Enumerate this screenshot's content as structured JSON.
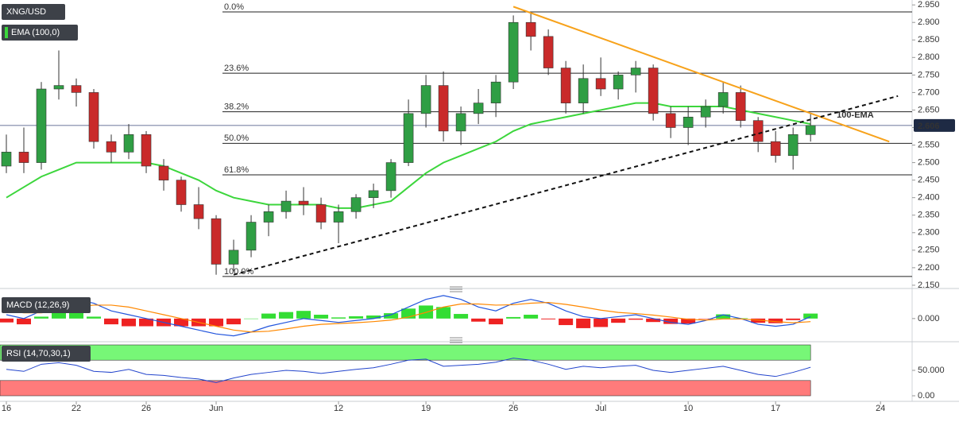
{
  "chart_data": [
    {
      "type": "candlestick",
      "title": "XNG/USD",
      "x": [
        0,
        1,
        2,
        3,
        4,
        5,
        6,
        7,
        8,
        9,
        10,
        11,
        12,
        13,
        14,
        15,
        16,
        17,
        18,
        19,
        20,
        21,
        22,
        23,
        24,
        25,
        26,
        27,
        28,
        29,
        30,
        31,
        32,
        33,
        34,
        35,
        36,
        37,
        38,
        39,
        40,
        41,
        42,
        43,
        44,
        45,
        46
      ],
      "open": [
        2.49,
        2.53,
        2.5,
        2.71,
        2.72,
        2.7,
        2.56,
        2.53,
        2.58,
        2.49,
        2.45,
        2.38,
        2.34,
        2.21,
        2.25,
        2.33,
        2.36,
        2.39,
        2.38,
        2.33,
        2.36,
        2.4,
        2.42,
        2.5,
        2.64,
        2.72,
        2.59,
        2.64,
        2.67,
        2.73,
        2.9,
        2.86,
        2.77,
        2.67,
        2.74,
        2.71,
        2.75,
        2.77,
        2.64,
        2.6,
        2.63,
        2.66,
        2.7,
        2.62,
        2.56,
        2.52,
        2.58
      ],
      "high": [
        2.58,
        2.6,
        2.73,
        2.82,
        2.74,
        2.71,
        2.58,
        2.61,
        2.59,
        2.51,
        2.46,
        2.43,
        2.35,
        2.28,
        2.35,
        2.38,
        2.42,
        2.43,
        2.4,
        2.38,
        2.41,
        2.44,
        2.51,
        2.68,
        2.75,
        2.76,
        2.66,
        2.71,
        2.75,
        2.92,
        2.93,
        2.88,
        2.79,
        2.78,
        2.8,
        2.76,
        2.79,
        2.78,
        2.66,
        2.66,
        2.68,
        2.73,
        2.72,
        2.63,
        2.59,
        2.6,
        2.64
      ],
      "low": [
        2.47,
        2.47,
        2.48,
        2.68,
        2.66,
        2.54,
        2.5,
        2.51,
        2.47,
        2.42,
        2.36,
        2.31,
        2.18,
        2.19,
        2.23,
        2.29,
        2.34,
        2.35,
        2.31,
        2.27,
        2.34,
        2.37,
        2.4,
        2.49,
        2.6,
        2.56,
        2.55,
        2.61,
        2.63,
        2.71,
        2.82,
        2.75,
        2.64,
        2.64,
        2.69,
        2.68,
        2.7,
        2.62,
        2.57,
        2.55,
        2.6,
        2.64,
        2.6,
        2.53,
        2.5,
        2.48,
        2.56
      ],
      "close": [
        2.53,
        2.5,
        2.71,
        2.72,
        2.7,
        2.56,
        2.53,
        2.58,
        2.49,
        2.45,
        2.38,
        2.34,
        2.21,
        2.25,
        2.33,
        2.36,
        2.39,
        2.38,
        2.33,
        2.36,
        2.4,
        2.42,
        2.5,
        2.64,
        2.72,
        2.59,
        2.64,
        2.67,
        2.73,
        2.9,
        2.86,
        2.77,
        2.67,
        2.74,
        2.71,
        2.75,
        2.77,
        2.64,
        2.6,
        2.63,
        2.66,
        2.7,
        2.62,
        2.56,
        2.52,
        2.58,
        2.606
      ],
      "up_color": "#2f9e44",
      "down_color": "#c92a2a",
      "series": [
        {
          "name": "EMA (100,0)",
          "color": "#3cd63c",
          "values": [
            2.4,
            2.43,
            2.46,
            2.48,
            2.5,
            2.5,
            2.5,
            2.5,
            2.5,
            2.49,
            2.47,
            2.45,
            2.42,
            2.4,
            2.39,
            2.38,
            2.38,
            2.38,
            2.38,
            2.37,
            2.37,
            2.38,
            2.39,
            2.43,
            2.47,
            2.5,
            2.52,
            2.54,
            2.56,
            2.59,
            2.61,
            2.62,
            2.63,
            2.64,
            2.65,
            2.66,
            2.67,
            2.67,
            2.66,
            2.66,
            2.66,
            2.66,
            2.65,
            2.64,
            2.63,
            2.62,
            2.61
          ]
        }
      ],
      "xlim": [
        -0.3636,
        51.9
      ],
      "xticks": [
        {
          "value": 0,
          "label": "16"
        },
        {
          "value": 4,
          "label": "22"
        },
        {
          "value": 8,
          "label": "26"
        },
        {
          "value": 12,
          "label": "Jun"
        },
        {
          "value": 19,
          "label": "12"
        },
        {
          "value": 24,
          "label": "19"
        },
        {
          "value": 29,
          "label": "26"
        },
        {
          "value": 34,
          "label": "Jul"
        },
        {
          "value": 39,
          "label": "10"
        },
        {
          "value": 44,
          "label": "17"
        },
        {
          "value": 50,
          "label": "24"
        }
      ],
      "ylim": [
        2.143,
        2.964
      ],
      "yticks": [
        {
          "value": 2.15,
          "label": "2.150"
        },
        {
          "value": 2.2,
          "label": "2.200"
        },
        {
          "value": 2.25,
          "label": "2.250"
        },
        {
          "value": 2.3,
          "label": "2.300"
        },
        {
          "value": 2.35,
          "label": "2.350"
        },
        {
          "value": 2.4,
          "label": "2.400"
        },
        {
          "value": 2.45,
          "label": "2.450"
        },
        {
          "value": 2.5,
          "label": "2.500"
        },
        {
          "value": 2.55,
          "label": "2.550"
        },
        {
          "value": 2.6,
          "label": "2.600"
        },
        {
          "value": 2.65,
          "label": "2.650"
        },
        {
          "value": 2.7,
          "label": "2.700"
        },
        {
          "value": 2.75,
          "label": "2.750"
        },
        {
          "value": 2.8,
          "label": "2.800"
        },
        {
          "value": 2.85,
          "label": "2.850"
        },
        {
          "value": 2.9,
          "label": "2.900"
        },
        {
          "value": 2.95,
          "label": "2.950"
        }
      ],
      "fib_levels": [
        {
          "label": "0.0%",
          "value": 2.93
        },
        {
          "label": "23.6%",
          "value": 2.755
        },
        {
          "label": "38.2%",
          "value": 2.645
        },
        {
          "label": "50.0%",
          "value": 2.555
        },
        {
          "label": "61.8%",
          "value": 2.465
        },
        {
          "label": "100.0%",
          "value": 2.175
        }
      ],
      "trendlines": [
        {
          "x": [
            29,
            50.5
          ],
          "y": [
            2.945,
            2.56
          ],
          "color": "#f7a21b",
          "dashed": false
        },
        {
          "x": [
            13,
            51
          ],
          "y": [
            2.18,
            2.69
          ],
          "color": "#111111",
          "dashed": true
        }
      ],
      "annotation": {
        "text": "100-EMA",
        "x": 47.5,
        "y": 2.635,
        "color": "#3cd63c"
      },
      "last_price": 2.606
    },
    {
      "type": "macd",
      "title": "MACD (12,26,9)",
      "series": [
        {
          "color": "#2255dd",
          "values": [
            0.01,
            0.0,
            0.02,
            0.04,
            0.05,
            0.04,
            0.02,
            0.01,
            0.0,
            -0.01,
            -0.02,
            -0.03,
            -0.04,
            -0.045,
            -0.035,
            -0.02,
            -0.01,
            0.0,
            -0.005,
            -0.01,
            -0.005,
            0.0,
            0.01,
            0.03,
            0.05,
            0.06,
            0.05,
            0.03,
            0.02,
            0.04,
            0.05,
            0.04,
            0.02,
            0.005,
            0.0,
            0.005,
            0.01,
            0.0,
            -0.01,
            -0.015,
            -0.005,
            0.01,
            0.0,
            -0.015,
            -0.02,
            -0.015,
            0.005
          ]
        },
        {
          "color": "#ff8800",
          "values": [
            0.02,
            0.015,
            0.015,
            0.02,
            0.03,
            0.035,
            0.035,
            0.03,
            0.02,
            0.01,
            0.0,
            -0.01,
            -0.02,
            -0.03,
            -0.035,
            -0.033,
            -0.027,
            -0.02,
            -0.015,
            -0.013,
            -0.011,
            -0.008,
            -0.004,
            0.004,
            0.016,
            0.03,
            0.038,
            0.038,
            0.035,
            0.036,
            0.04,
            0.042,
            0.037,
            0.03,
            0.022,
            0.016,
            0.013,
            0.009,
            0.004,
            -0.002,
            -0.004,
            -0.001,
            -0.001,
            -0.004,
            -0.008,
            -0.011,
            -0.008
          ]
        }
      ],
      "histogram": {
        "up_color": "#33dd33",
        "down_color": "#ee2222",
        "values": [
          -0.01,
          -0.015,
          0.005,
          0.02,
          0.02,
          0.005,
          -0.015,
          -0.02,
          -0.02,
          -0.02,
          -0.02,
          -0.02,
          -0.02,
          -0.015,
          0.0,
          0.013,
          0.017,
          0.02,
          0.01,
          0.003,
          0.006,
          0.008,
          0.014,
          0.026,
          0.034,
          0.03,
          0.012,
          -0.008,
          -0.015,
          0.004,
          0.01,
          -0.002,
          -0.017,
          -0.025,
          -0.022,
          -0.011,
          -0.003,
          -0.009,
          -0.014,
          -0.013,
          -0.001,
          0.011,
          0.001,
          -0.011,
          -0.012,
          -0.004,
          0.013
        ]
      },
      "ylim": [
        -0.05,
        0.068
      ],
      "yticks": [
        {
          "value": 0,
          "label": "0.000"
        }
      ]
    },
    {
      "type": "rsi",
      "title": "RSI (14,70,30,1)",
      "color": "#2244cc",
      "values": [
        52,
        48,
        62,
        65,
        60,
        48,
        46,
        52,
        42,
        40,
        36,
        33,
        26,
        35,
        42,
        46,
        50,
        48,
        44,
        48,
        52,
        55,
        62,
        70,
        72,
        58,
        60,
        62,
        66,
        74,
        70,
        62,
        52,
        58,
        55,
        58,
        60,
        50,
        46,
        50,
        54,
        58,
        50,
        42,
        38,
        46,
        56
      ],
      "bands": [
        {
          "from": 70,
          "to": 100,
          "color": "#77f777"
        },
        {
          "from": 0,
          "to": 30,
          "color": "#ff7b7b"
        }
      ],
      "ylim": [
        0,
        100
      ],
      "yticks": [
        {
          "value": 0,
          "label": "0.00"
        },
        {
          "value": 50,
          "label": "50.000"
        }
      ]
    }
  ]
}
